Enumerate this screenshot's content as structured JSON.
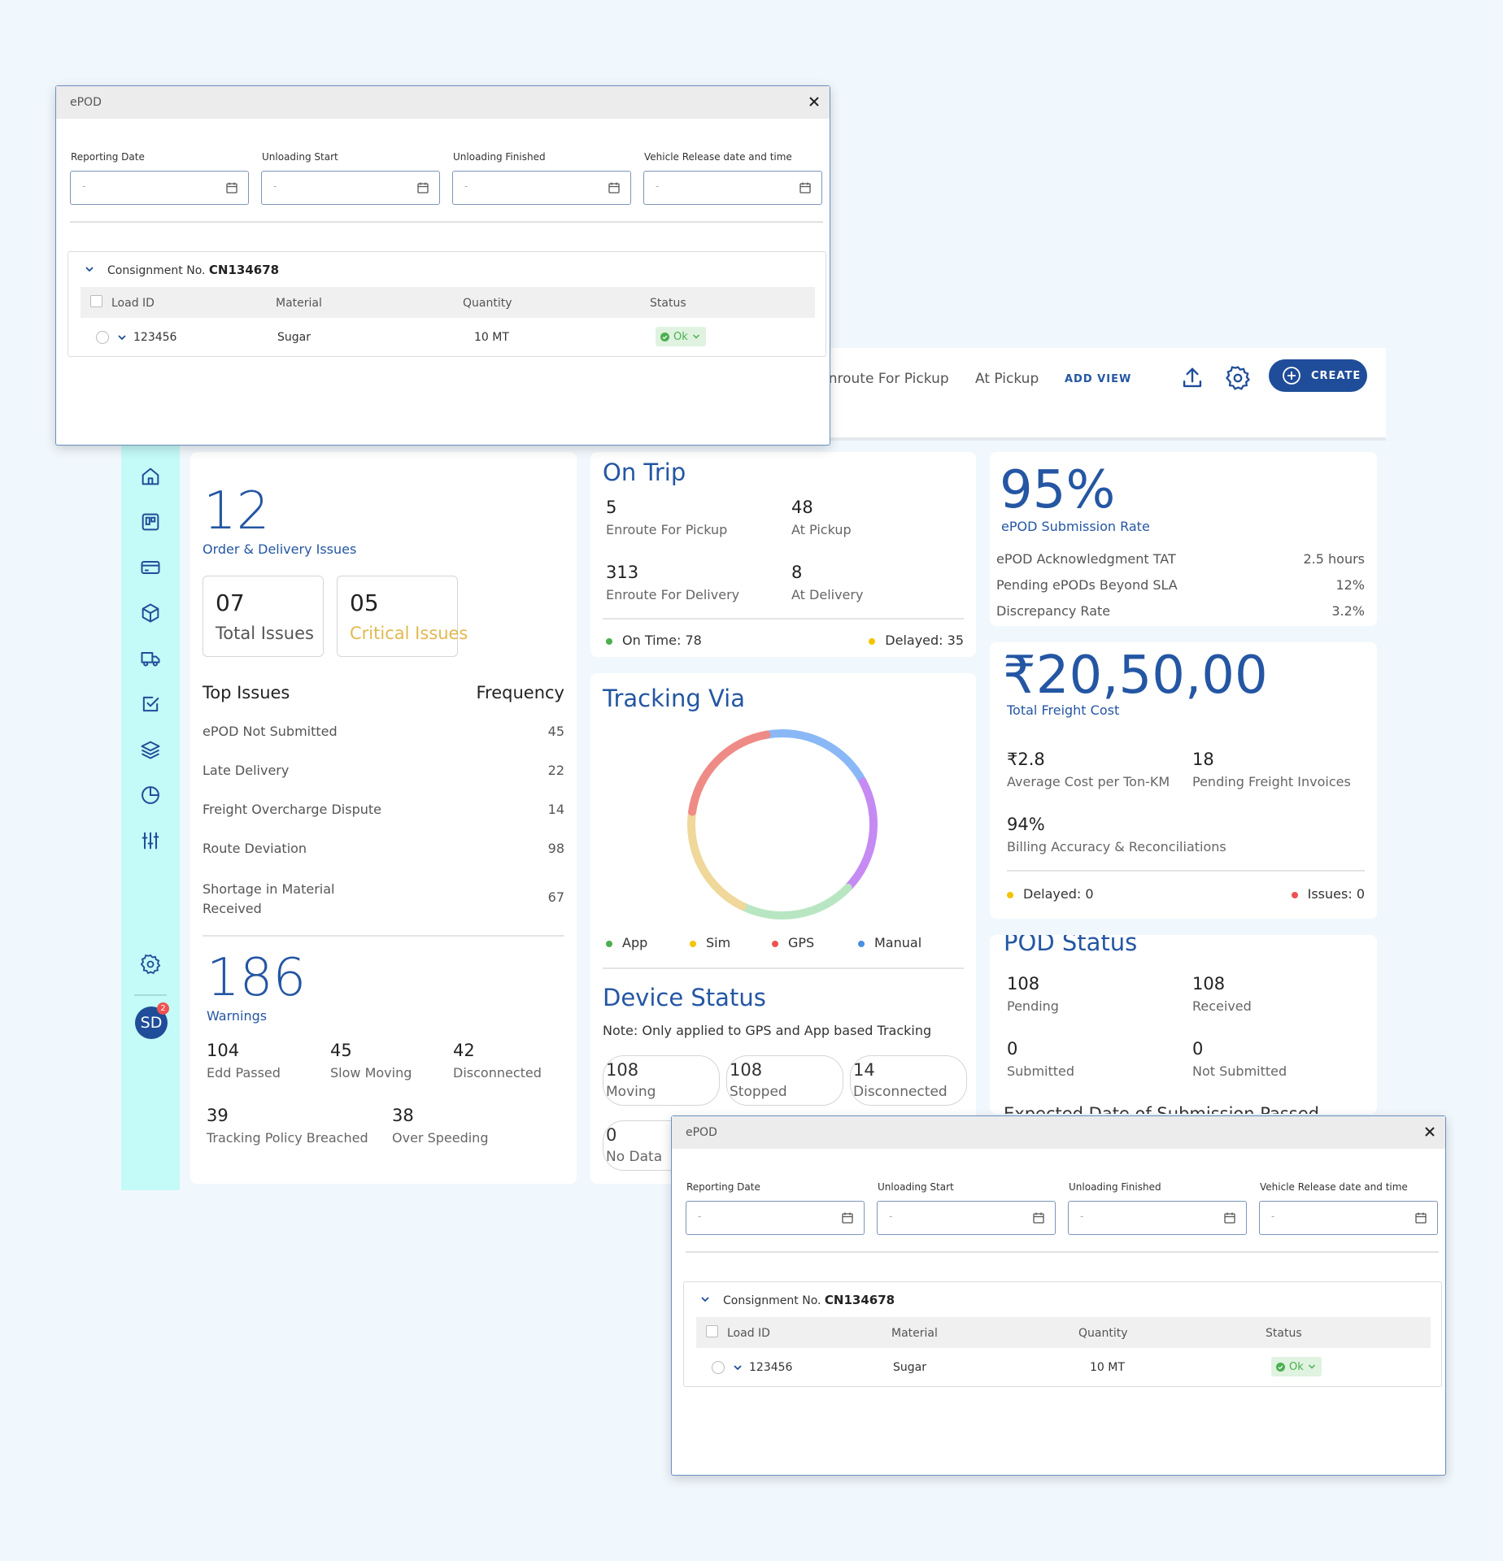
{
  "topbar": {
    "tabs": [
      "Enroute For Pickup",
      "At Pickup"
    ],
    "add_view": "ADD VIEW",
    "create": "CREATE"
  },
  "sidebar": {
    "items": [
      "home-icon",
      "board-icon",
      "card-icon",
      "box-icon",
      "truck-icon",
      "checklist-icon",
      "layers-icon",
      "pie-chart-icon",
      "sliders-icon"
    ],
    "avatar": "SD",
    "notifications": "2"
  },
  "issues_card": {
    "count": "12",
    "label": "Order & Delivery Issues",
    "total": {
      "value": "07",
      "label": "Total Issues"
    },
    "critical": {
      "value": "05",
      "label": "Critical Issues"
    },
    "top_issues_header": "Top Issues",
    "frequency_header": "Frequency",
    "issues": [
      {
        "name": "ePOD Not Submitted",
        "freq": "45"
      },
      {
        "name": "Late Delivery",
        "freq": "22"
      },
      {
        "name": "Freight Overcharge Dispute",
        "freq": "14"
      },
      {
        "name": "Route Deviation",
        "freq": "98"
      },
      {
        "name": "Shortage in Material Received",
        "freq": "67"
      }
    ],
    "warnings": {
      "count": "186",
      "label": "Warnings"
    },
    "warning_stats": [
      {
        "value": "104",
        "label": "Edd Passed"
      },
      {
        "value": "45",
        "label": "Slow Moving"
      },
      {
        "value": "42",
        "label": "Disconnected"
      },
      {
        "value": "39",
        "label": "Tracking Policy Breached"
      },
      {
        "value": "38",
        "label": "Over Speeding"
      }
    ]
  },
  "on_trip": {
    "title": "On Trip",
    "stats": [
      {
        "value": "5",
        "label": "Enroute For Pickup"
      },
      {
        "value": "48",
        "label": "At Pickup"
      },
      {
        "value": "313",
        "label": "Enroute For Delivery"
      },
      {
        "value": "8",
        "label": "At Delivery"
      }
    ],
    "on_time": "On Time: 78",
    "delayed": "Delayed: 35"
  },
  "tracking": {
    "title": "Tracking Via",
    "legend": [
      "App",
      "Sim",
      "GPS",
      "Manual"
    ],
    "colors": {
      "App": "#4caf50",
      "Sim": "#f2c500",
      "GPS": "#ef5350",
      "Manual": "#4a90e2"
    },
    "ring_colors": [
      "#8ab8f7",
      "#c58bf2",
      "#b9e6c2",
      "#f0d79a",
      "#ef8b86"
    ]
  },
  "device": {
    "title": "Device Status",
    "note": "Note: Only applied to GPS and App based Tracking",
    "pills": [
      {
        "value": "108",
        "label": "Moving"
      },
      {
        "value": "108",
        "label": "Stopped"
      },
      {
        "value": "14",
        "label": "Disconnected"
      },
      {
        "value": "0",
        "label": "No Data"
      }
    ]
  },
  "epod_rate": {
    "value": "95%",
    "label": "ePOD Submission Rate",
    "rows": [
      {
        "label": "ePOD Acknowledgment TAT",
        "value": "2.5 hours"
      },
      {
        "label": "Pending ePODs Beyond SLA",
        "value": "12%"
      },
      {
        "label": "Discrepancy Rate",
        "value": "3.2%"
      }
    ]
  },
  "freight": {
    "value": "₹20,50,00",
    "label": "Total Freight Cost",
    "stats": [
      {
        "value": "₹2.8",
        "label": "Average Cost per Ton-KM"
      },
      {
        "value": "18",
        "label": "Pending Freight Invoices"
      },
      {
        "value": "94%",
        "label": "Billing Accuracy & Reconciliations"
      }
    ],
    "delayed": "Delayed: 0",
    "issues": "Issues: 0"
  },
  "pod": {
    "title": "POD Status",
    "stats": [
      {
        "value": "108",
        "label": "Pending"
      },
      {
        "value": "108",
        "label": "Received"
      },
      {
        "value": "0",
        "label": "Submitted"
      },
      {
        "value": "0",
        "label": "Not Submitted"
      }
    ],
    "footer": "Expected Date of Submission Passed"
  },
  "modal": {
    "title": "ePOD",
    "fields": [
      "Reporting Date",
      "Unloading Start",
      "Unloading Finished",
      "Vehicle Release date and time"
    ],
    "placeholder": "-",
    "consignment_label": "Consignment No.",
    "consignment_no": "CN134678",
    "columns": [
      "Load ID",
      "Material",
      "Quantity",
      "Status"
    ],
    "row": {
      "load_id": "123456",
      "material": "Sugar",
      "quantity": "10 MT",
      "status": "Ok"
    }
  }
}
